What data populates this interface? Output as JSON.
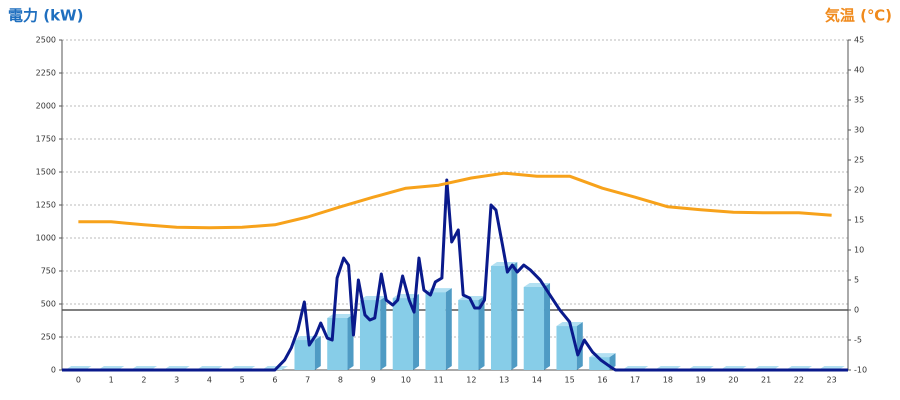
{
  "chart_data": {
    "type": "combo",
    "y_title": "電力 (kW)",
    "y2_title": "気温 (℃)",
    "y_title_color": "#1f6fbf",
    "y2_title_color": "#f08a1c",
    "categories": [
      "0",
      "1",
      "2",
      "3",
      "4",
      "5",
      "6",
      "7",
      "8",
      "9",
      "10",
      "11",
      "12",
      "13",
      "14",
      "15",
      "16",
      "17",
      "18",
      "19",
      "20",
      "21",
      "22",
      "23"
    ],
    "xlim": [
      -0.5,
      23.5
    ],
    "ylim": [
      0,
      2500
    ],
    "yticks": [
      0,
      250,
      500,
      750,
      1000,
      1250,
      1500,
      1750,
      2000,
      2250,
      2500
    ],
    "y2lim": [
      -10,
      45
    ],
    "y2ticks": [
      -10,
      -5,
      0,
      5,
      10,
      15,
      20,
      25,
      30,
      35,
      40,
      45
    ],
    "y2_reference": 0,
    "grid": true,
    "series": [
      {
        "type": "bar",
        "color": "#87cde8",
        "values": [
          0,
          0,
          0,
          0,
          0,
          0,
          0,
          227,
          394,
          530,
          545,
          590,
          530,
          788,
          629,
          333,
          98,
          0,
          0,
          0,
          0,
          0,
          0,
          0
        ]
      },
      {
        "type": "line",
        "color": "#0a1a8c",
        "x": [
          -0.5,
          6.0,
          6.3,
          6.5,
          6.7,
          6.9,
          7.05,
          7.25,
          7.4,
          7.6,
          7.75,
          7.9,
          8.1,
          8.25,
          8.4,
          8.55,
          8.75,
          8.9,
          9.05,
          9.25,
          9.4,
          9.6,
          9.75,
          9.9,
          10.1,
          10.25,
          10.4,
          10.55,
          10.75,
          10.9,
          11.1,
          11.25,
          11.4,
          11.6,
          11.75,
          11.95,
          12.1,
          12.25,
          12.4,
          12.6,
          12.75,
          12.95,
          13.1,
          13.25,
          13.4,
          13.6,
          13.8,
          14.1,
          14.4,
          14.7,
          15.0,
          15.25,
          15.45,
          15.7,
          15.95,
          16.25,
          16.4,
          23.5
        ],
        "values": [
          0,
          0,
          76,
          167,
          303,
          515,
          189,
          265,
          356,
          242,
          227,
          697,
          848,
          795,
          265,
          682,
          417,
          379,
          394,
          727,
          530,
          492,
          530,
          712,
          530,
          439,
          848,
          606,
          568,
          667,
          697,
          1439,
          970,
          1061,
          568,
          545,
          470,
          470,
          530,
          1250,
          1212,
          947,
          742,
          795,
          742,
          795,
          758,
          682,
          568,
          455,
          364,
          114,
          227,
          136,
          76,
          23,
          0,
          0
        ]
      },
      {
        "type": "line",
        "axis": "y2",
        "color": "#f7a21b",
        "values": [
          14.7,
          14.7,
          14.2,
          13.8,
          13.7,
          13.8,
          14.2,
          15.5,
          17.2,
          18.8,
          20.3,
          20.8,
          22,
          22.8,
          22.3,
          22.3,
          20.3,
          18.8,
          17.2,
          16.7,
          16.3,
          16.2,
          16.2,
          15.8
        ]
      }
    ]
  }
}
